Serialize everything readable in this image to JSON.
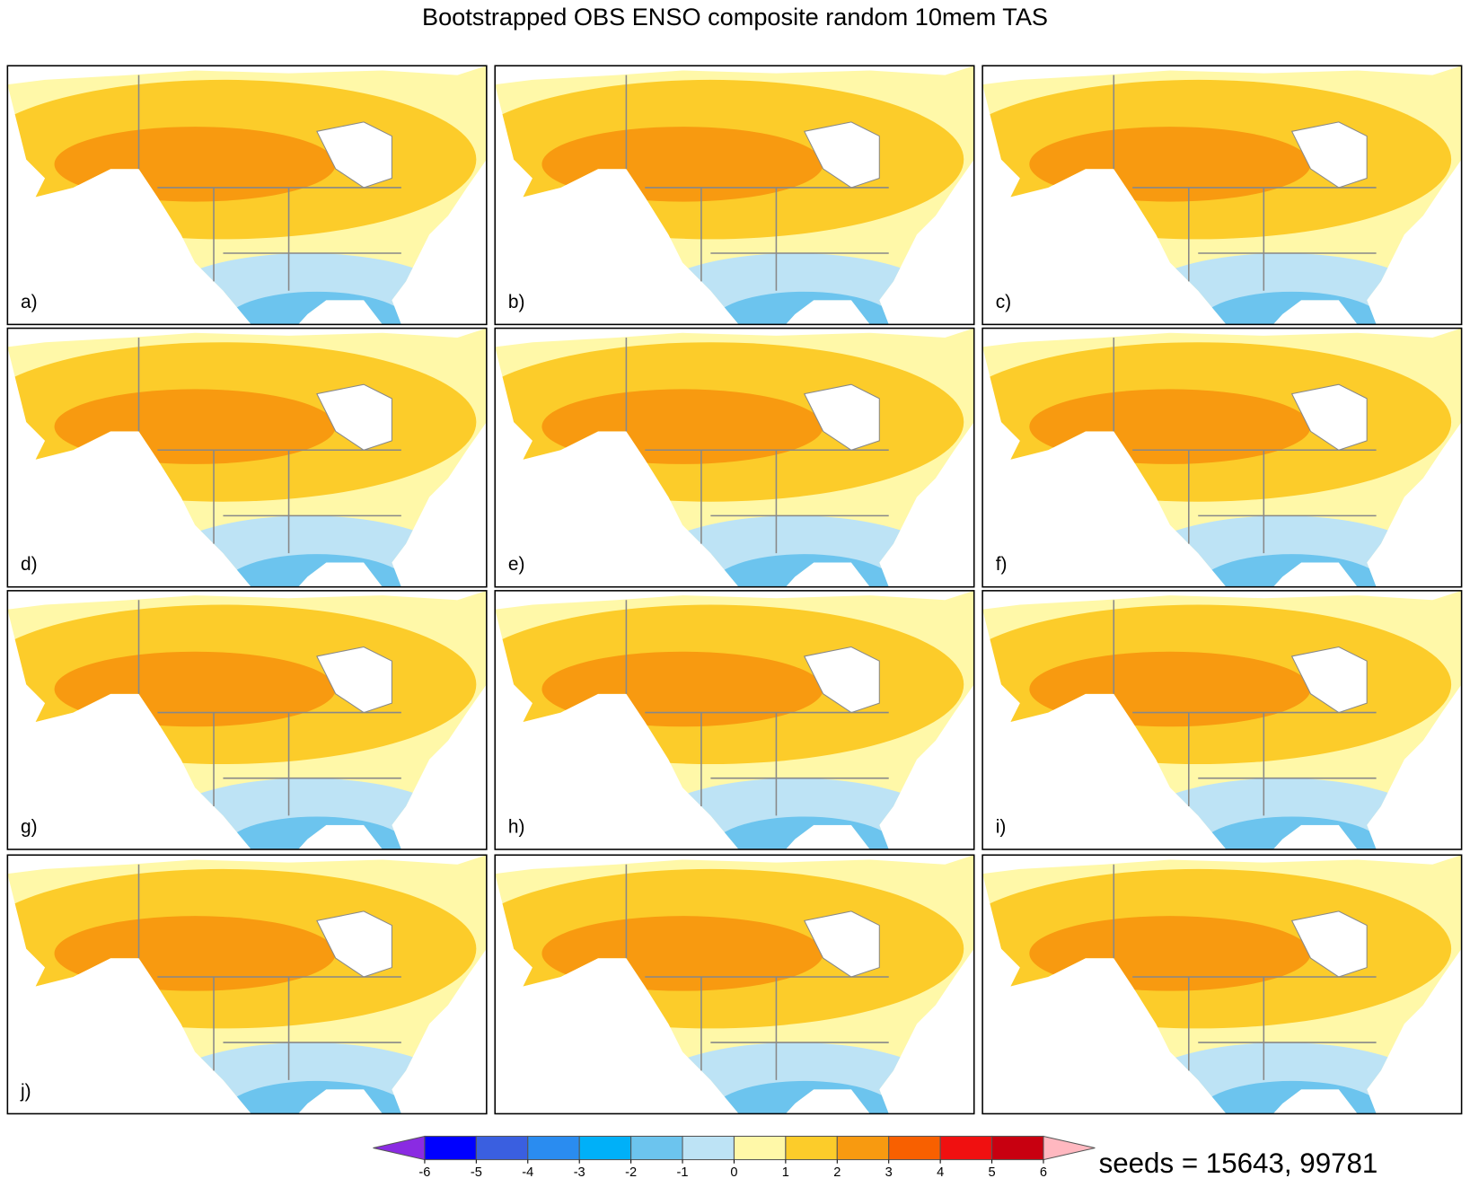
{
  "title": "Bootstrapped OBS ENSO composite random 10mem TAS",
  "panels": [
    {
      "label": "a)"
    },
    {
      "label": "b)"
    },
    {
      "label": "c)"
    },
    {
      "label": "d)"
    },
    {
      "label": "e)"
    },
    {
      "label": "f)"
    },
    {
      "label": "g)"
    },
    {
      "label": "h)"
    },
    {
      "label": "i)"
    },
    {
      "label": "j)"
    },
    {
      "label": null
    },
    {
      "label": null
    }
  ],
  "colorbar": {
    "ticks": [
      -6,
      -5,
      -4,
      -3,
      -2,
      -1,
      0,
      1,
      2,
      3,
      4,
      5,
      6
    ],
    "colors": [
      "#8a2be2",
      "#0000ff",
      "#3a5fe0",
      "#2a8cf0",
      "#00b0f8",
      "#6cc4ee",
      "#bde3f5",
      "#fff8a8",
      "#fccc2a",
      "#f89a10",
      "#f86000",
      "#f01010",
      "#c80010",
      "#ffb8c0"
    ]
  },
  "annotation": "seeds = 15643, 99781"
}
